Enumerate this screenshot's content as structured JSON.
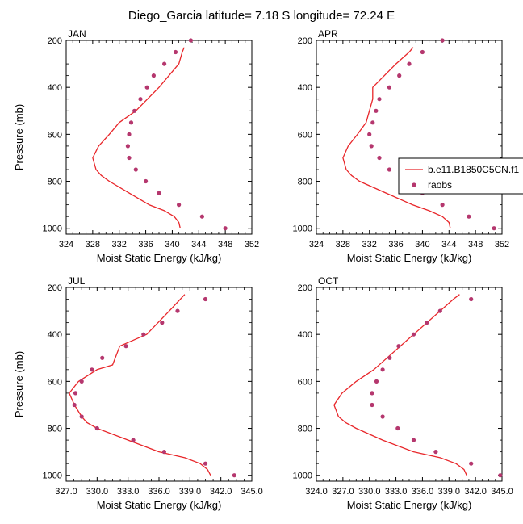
{
  "figure": {
    "title": "Diego_Garcia  latitude= 7.18 S longitude= 72.24 E"
  },
  "colors": {
    "model_line": "#e8262a",
    "raobs_marker": "#b5376e",
    "axes": "#000000",
    "background": "#ffffff"
  },
  "legend": {
    "entries": [
      {
        "label": "b.e11.B1850C5CN.f1",
        "type": "line"
      },
      {
        "label": "raobs",
        "type": "marker"
      }
    ]
  },
  "chart_data": [
    {
      "type": "line",
      "panel": "JAN",
      "xlabel": "Moist Static Energy (kJ/kg)",
      "ylabel": "Pressure (mb)",
      "xlim": [
        324,
        352
      ],
      "ylim": [
        1025,
        200
      ],
      "xticks": [
        "324",
        "328",
        "332",
        "336",
        "340",
        "344",
        "348",
        "352"
      ],
      "yticks": [
        "200",
        "400",
        "600",
        "800",
        "1000"
      ],
      "series": [
        {
          "name": "b.e11.B1850C5CN.f1",
          "style": "line",
          "x": [
            341.2,
            341.0,
            340.3,
            338.8,
            336.5,
            333.5,
            330.5,
            329.3,
            328.5,
            328.0,
            328.9,
            330.5,
            332.0,
            334.5,
            338.0,
            341.0,
            341.5,
            341.8
          ],
          "y": [
            1000,
            975,
            950,
            925,
            900,
            850,
            800,
            775,
            750,
            700,
            650,
            600,
            550,
            500,
            400,
            300,
            250,
            230
          ]
        },
        {
          "name": "raobs",
          "style": "marker",
          "x": [
            348.0,
            344.5,
            341.0,
            338.0,
            336.0,
            334.5,
            333.5,
            333.3,
            333.5,
            333.8,
            334.3,
            335.2,
            336.2,
            337.2,
            338.8,
            340.5,
            342.8
          ],
          "y": [
            1000,
            950,
            900,
            850,
            800,
            750,
            700,
            650,
            600,
            550,
            500,
            450,
            400,
            350,
            300,
            250,
            200
          ]
        }
      ]
    },
    {
      "type": "line",
      "panel": "APR",
      "xlabel": "Moist Static Energy (kJ/kg)",
      "ylabel": "",
      "xlim": [
        324,
        352
      ],
      "ylim": [
        1025,
        200
      ],
      "xticks": [
        "324",
        "328",
        "332",
        "336",
        "340",
        "344",
        "348",
        "352"
      ],
      "yticks": [
        "200",
        "400",
        "600",
        "800",
        "1000"
      ],
      "series": [
        {
          "name": "b.e11.B1850C5CN.f1",
          "style": "line",
          "x": [
            344.2,
            344.0,
            343.0,
            341.0,
            338.5,
            334.5,
            330.5,
            329.3,
            328.5,
            328.0,
            328.8,
            330.2,
            331.5,
            332.5,
            332.5,
            336.0,
            338.0,
            338.6
          ],
          "y": [
            1000,
            975,
            950,
            925,
            900,
            850,
            800,
            775,
            750,
            700,
            650,
            600,
            550,
            450,
            400,
            300,
            250,
            230
          ]
        },
        {
          "name": "raobs",
          "style": "marker",
          "x": [
            350.8,
            347.0,
            343.0,
            340.0,
            337.0,
            335.0,
            333.5,
            332.3,
            332.0,
            332.5,
            333.0,
            333.5,
            335.0,
            336.5,
            338.0,
            340.0,
            343.0
          ],
          "y": [
            1000,
            950,
            900,
            850,
            800,
            750,
            700,
            650,
            600,
            550,
            500,
            450,
            400,
            350,
            300,
            250,
            200
          ]
        }
      ]
    },
    {
      "type": "line",
      "panel": "JUL",
      "xlabel": "Moist Static Energy (kJ/kg)",
      "ylabel": "Pressure (mb)",
      "xlim": [
        327,
        345
      ],
      "ylim": [
        1025,
        200
      ],
      "xticks": [
        "327.0",
        "330.0",
        "333.0",
        "336.0",
        "339.0",
        "342.0",
        "345.0"
      ],
      "yticks": [
        "200",
        "400",
        "600",
        "800",
        "1000"
      ],
      "series": [
        {
          "name": "b.e11.B1850C5CN.f1",
          "style": "line",
          "x": [
            341.0,
            340.7,
            340.0,
            338.5,
            336.0,
            333.0,
            330.0,
            329.0,
            328.5,
            327.8,
            327.3,
            328.2,
            330.0,
            331.5,
            332.2,
            334.8,
            337.0,
            338.5
          ],
          "y": [
            1000,
            975,
            950,
            925,
            900,
            850,
            800,
            775,
            750,
            700,
            650,
            600,
            550,
            530,
            450,
            400,
            300,
            230
          ]
        },
        {
          "name": "raobs",
          "style": "marker",
          "x": [
            343.3,
            340.5,
            336.5,
            333.5,
            330.0,
            328.5,
            327.8,
            327.9,
            328.5,
            329.5,
            330.5,
            332.8,
            334.5,
            336.3,
            337.8,
            340.5
          ],
          "y": [
            1000,
            950,
            900,
            850,
            800,
            750,
            700,
            650,
            600,
            550,
            500,
            450,
            400,
            350,
            300,
            250
          ]
        }
      ]
    },
    {
      "type": "line",
      "panel": "OCT",
      "xlabel": "Moist Static Energy (kJ/kg)",
      "ylabel": "",
      "xlim": [
        324,
        345
      ],
      "ylim": [
        1025,
        200
      ],
      "xticks": [
        "324.0",
        "327.0",
        "330.0",
        "333.0",
        "336.0",
        "339.0",
        "342.0",
        "345.0"
      ],
      "yticks": [
        "200",
        "400",
        "600",
        "800",
        "1000"
      ],
      "series": [
        {
          "name": "b.e11.B1850C5CN.f1",
          "style": "line",
          "x": [
            341.0,
            340.7,
            339.8,
            338.0,
            335.0,
            331.5,
            328.5,
            327.3,
            326.5,
            326.0,
            326.9,
            328.5,
            330.5,
            332.0,
            335.0,
            338.0,
            339.5,
            340.2
          ],
          "y": [
            1000,
            975,
            950,
            925,
            900,
            850,
            800,
            775,
            750,
            700,
            650,
            600,
            550,
            500,
            400,
            300,
            250,
            230
          ]
        },
        {
          "name": "raobs",
          "style": "marker",
          "x": [
            344.8,
            341.5,
            337.5,
            335.0,
            333.2,
            331.5,
            330.3,
            330.3,
            330.8,
            331.5,
            332.3,
            333.3,
            335.0,
            336.5,
            338.0,
            341.5
          ],
          "y": [
            1000,
            950,
            900,
            850,
            800,
            750,
            700,
            650,
            600,
            550,
            500,
            450,
            400,
            350,
            300,
            250
          ]
        }
      ]
    }
  ]
}
